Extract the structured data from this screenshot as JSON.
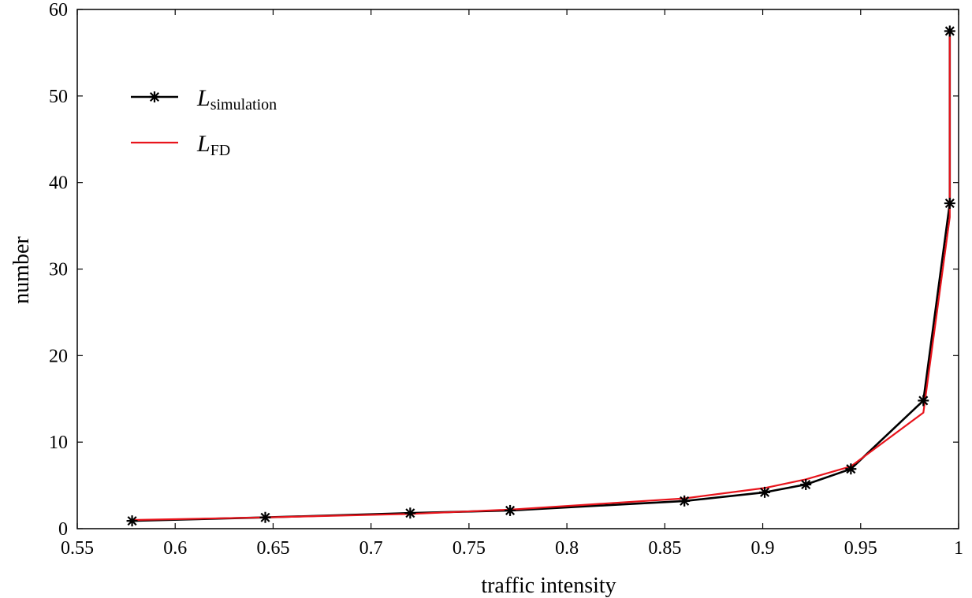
{
  "chart_data": {
    "type": "line",
    "xlabel": "traffic intensity",
    "ylabel": "number",
    "xlim": [
      0.55,
      1
    ],
    "ylim": [
      0,
      60
    ],
    "xticks": [
      0.55,
      0.6,
      0.65,
      0.7,
      0.75,
      0.8,
      0.85,
      0.9,
      0.95,
      1
    ],
    "xtick_labels": [
      "0.55",
      "0.6",
      "0.65",
      "0.7",
      "0.75",
      "0.8",
      "0.85",
      "0.9",
      "0.95",
      "1"
    ],
    "yticks": [
      0,
      10,
      20,
      30,
      40,
      50,
      60
    ],
    "ytick_labels": [
      "0",
      "10",
      "20",
      "30",
      "40",
      "50",
      "60"
    ],
    "grid": false,
    "legend_position": "top-left",
    "series": [
      {
        "name_main": "L",
        "name_sub": "simulation",
        "color": "#000000",
        "marker": "asterisk",
        "x": [
          0.578,
          0.646,
          0.72,
          0.771,
          0.86,
          0.901,
          0.922,
          0.945,
          0.982,
          0.9955,
          0.9955
        ],
        "y": [
          0.9,
          1.3,
          1.8,
          2.1,
          3.2,
          4.2,
          5.1,
          6.9,
          14.8,
          37.6,
          57.5
        ]
      },
      {
        "name_main": "L",
        "name_sub": "FD",
        "color": "#e8141c",
        "marker": "none",
        "x": [
          0.578,
          0.646,
          0.72,
          0.771,
          0.86,
          0.901,
          0.922,
          0.945,
          0.982,
          0.9955,
          0.9955
        ],
        "y": [
          1.0,
          1.3,
          1.7,
          2.2,
          3.5,
          4.7,
          5.7,
          7.2,
          13.4,
          36.0,
          57.5
        ]
      }
    ]
  }
}
